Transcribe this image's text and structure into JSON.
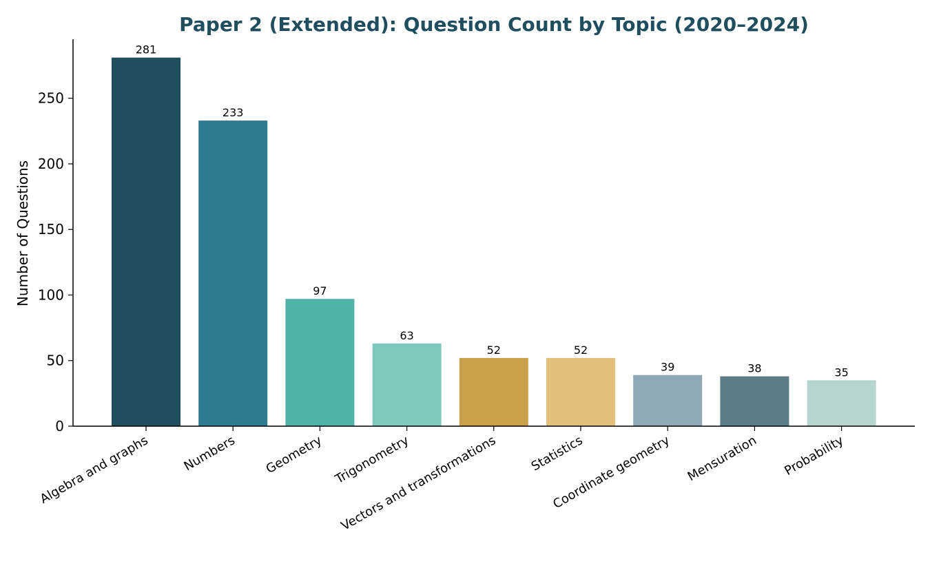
{
  "chart_data": {
    "type": "bar",
    "title": "Paper 2 (Extended): Question Count by Topic (2020–2024)",
    "xlabel": "",
    "ylabel": "Number of Questions",
    "categories": [
      "Algebra and graphs",
      "Numbers",
      "Geometry",
      "Trigonometry",
      "Vectors and transformations",
      "Statistics",
      "Coordinate geometry",
      "Mensuration",
      "Probability"
    ],
    "values": [
      281,
      233,
      97,
      63,
      52,
      52,
      39,
      38,
      35
    ],
    "colors": [
      "#1f4e5f",
      "#2e7a8e",
      "#4fb3aa",
      "#7ec8bd",
      "#c8a04a",
      "#e2c07b",
      "#8fa8b5",
      "#5b7d86",
      "#b7d5cf"
    ],
    "ylim": [
      0,
      295
    ],
    "yticks": [
      0,
      50,
      100,
      150,
      200,
      250
    ],
    "grid": false,
    "legend": "none",
    "title_color": "#1f4e5f",
    "data_labels": true
  }
}
